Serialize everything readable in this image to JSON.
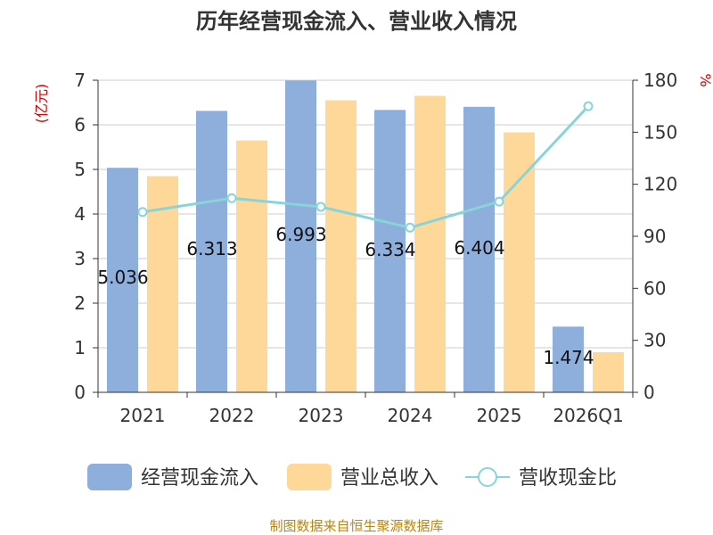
{
  "chart_data": {
    "type": "bar",
    "title": "历年经营现金流入、营业收入情况",
    "categories": [
      "2021",
      "2022",
      "2023",
      "2024",
      "2025",
      "2026Q1"
    ],
    "series": [
      {
        "name": "经营现金流入",
        "axis": "left",
        "kind": "bar",
        "color": "#8eaedb",
        "values": [
          5.036,
          6.313,
          6.993,
          6.334,
          6.404,
          1.474
        ]
      },
      {
        "name": "营业总收入",
        "axis": "left",
        "kind": "bar",
        "color": "#fdd898",
        "values": [
          4.85,
          5.65,
          6.55,
          6.65,
          5.83,
          0.9
        ]
      },
      {
        "name": "营收现金比",
        "axis": "right",
        "kind": "line",
        "color": "#88d4d8",
        "values": [
          104,
          112,
          107,
          95,
          110,
          165
        ]
      }
    ],
    "data_labels": [
      "5.036",
      "6.313",
      "6.993",
      "6.334",
      "6.404",
      "1.474"
    ],
    "y_left": {
      "label": "(亿元)",
      "lim": [
        0,
        7
      ],
      "ticks": [
        "0",
        "1",
        "2",
        "3",
        "4",
        "5",
        "6",
        "7"
      ]
    },
    "y_right": {
      "label": "%",
      "lim": [
        0,
        180
      ],
      "ticks": [
        "0",
        "30",
        "60",
        "90",
        "120",
        "150",
        "180"
      ]
    },
    "grid": true,
    "legend_position": "bottom"
  },
  "source": "制图数据来自恒生聚源数据库"
}
